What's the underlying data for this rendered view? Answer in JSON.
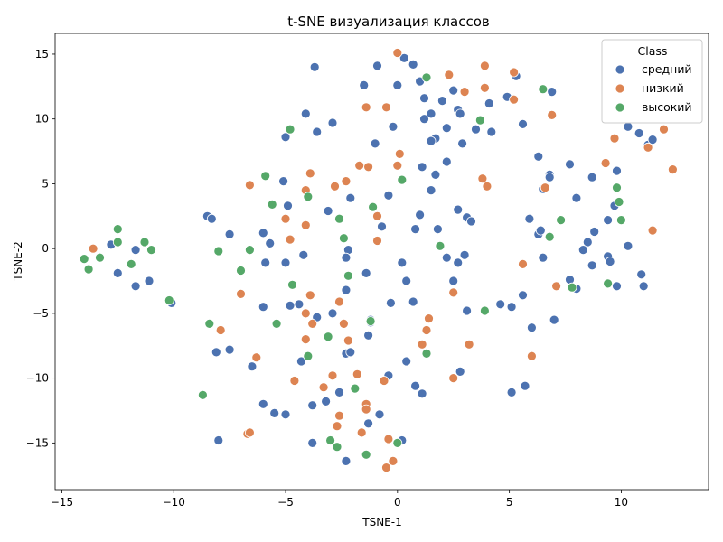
{
  "chart_data": {
    "type": "scatter",
    "title": "t-SNE визуализация классов",
    "xlabel": "TSNE-1",
    "ylabel": "TSNE-2",
    "xlim": [
      -15.3,
      13.9
    ],
    "ylim": [
      -18.6,
      16.6
    ],
    "xticks": [
      -15,
      -10,
      -5,
      0,
      5,
      10
    ],
    "yticks": [
      -15,
      -10,
      -5,
      0,
      5,
      10,
      15
    ],
    "xtick_labels": [
      "−15",
      "−10",
      "−5",
      "0",
      "5",
      "10"
    ],
    "ytick_labels": [
      "−15",
      "−10",
      "−5",
      "0",
      "5",
      "10",
      "15"
    ],
    "grid": false,
    "legend": {
      "title": "Class",
      "placement": "top-right"
    },
    "series": [
      {
        "name": "средний",
        "color": "#4c72b0",
        "points": [
          [
            -3.7,
            14.0
          ],
          [
            -0.9,
            14.1
          ],
          [
            0.3,
            14.7
          ],
          [
            0.7,
            14.2
          ],
          [
            -1.5,
            12.6
          ],
          [
            -0.0,
            12.6
          ],
          [
            1.0,
            12.9
          ],
          [
            2.5,
            12.2
          ],
          [
            5.3,
            13.3
          ],
          [
            -4.1,
            10.4
          ],
          [
            -2.9,
            9.7
          ],
          [
            -3.6,
            9.0
          ],
          [
            -5.0,
            8.6
          ],
          [
            -1.0,
            8.1
          ],
          [
            -0.2,
            9.4
          ],
          [
            1.2,
            10.0
          ],
          [
            1.5,
            10.4
          ],
          [
            2.0,
            11.4
          ],
          [
            2.7,
            10.7
          ],
          [
            2.8,
            10.4
          ],
          [
            2.2,
            9.3
          ],
          [
            1.7,
            8.5
          ],
          [
            1.5,
            8.3
          ],
          [
            2.9,
            8.1
          ],
          [
            3.5,
            9.2
          ],
          [
            4.1,
            11.2
          ],
          [
            4.9,
            11.7
          ],
          [
            4.2,
            9.0
          ],
          [
            5.6,
            9.6
          ],
          [
            6.9,
            12.1
          ],
          [
            1.2,
            11.6
          ],
          [
            -5.1,
            5.2
          ],
          [
            -4.9,
            3.3
          ],
          [
            -2.1,
            3.9
          ],
          [
            -0.4,
            4.1
          ],
          [
            -3.1,
            2.9
          ],
          [
            -0.7,
            1.7
          ],
          [
            -6.0,
            1.2
          ],
          [
            -5.7,
            0.4
          ],
          [
            -5.9,
            -1.1
          ],
          [
            -5.0,
            -1.1
          ],
          [
            -4.2,
            -0.5
          ],
          [
            -2.2,
            -0.1
          ],
          [
            -2.3,
            -0.7
          ],
          [
            -1.4,
            -1.9
          ],
          [
            0.2,
            -1.1
          ],
          [
            0.4,
            -2.5
          ],
          [
            0.8,
            1.5
          ],
          [
            1.0,
            2.6
          ],
          [
            1.1,
            6.3
          ],
          [
            1.7,
            5.7
          ],
          [
            1.5,
            4.5
          ],
          [
            2.2,
            6.7
          ],
          [
            2.7,
            3.0
          ],
          [
            3.1,
            2.4
          ],
          [
            3.3,
            2.1
          ],
          [
            1.8,
            1.5
          ],
          [
            2.2,
            -0.7
          ],
          [
            2.7,
            -1.1
          ],
          [
            3.0,
            -0.5
          ],
          [
            2.5,
            -2.5
          ],
          [
            5.9,
            2.3
          ],
          [
            6.3,
            1.1
          ],
          [
            6.4,
            1.4
          ],
          [
            6.3,
            7.1
          ],
          [
            6.8,
            5.7
          ],
          [
            6.8,
            5.5
          ],
          [
            6.5,
            4.6
          ],
          [
            6.5,
            -0.7
          ],
          [
            7.7,
            6.5
          ],
          [
            8.0,
            3.9
          ],
          [
            8.7,
            5.5
          ],
          [
            8.8,
            1.3
          ],
          [
            8.5,
            0.5
          ],
          [
            8.3,
            -0.1
          ],
          [
            8.7,
            -1.3
          ],
          [
            9.4,
            -0.6
          ],
          [
            9.5,
            -1.0
          ],
          [
            9.4,
            2.2
          ],
          [
            9.7,
            3.3
          ],
          [
            9.8,
            6.0
          ],
          [
            10.3,
            9.4
          ],
          [
            10.8,
            8.9
          ],
          [
            11.2,
            8.0
          ],
          [
            11.4,
            8.4
          ],
          [
            10.3,
            0.2
          ],
          [
            10.9,
            -2.0
          ],
          [
            11.0,
            -2.9
          ],
          [
            9.8,
            -2.9
          ],
          [
            7.7,
            -2.4
          ],
          [
            8.0,
            -3.1
          ],
          [
            -8.5,
            2.5
          ],
          [
            -8.3,
            2.3
          ],
          [
            -7.5,
            1.1
          ],
          [
            -11.7,
            -0.1
          ],
          [
            -12.8,
            0.3
          ],
          [
            -12.5,
            -1.9
          ],
          [
            -11.7,
            -2.9
          ],
          [
            -11.1,
            -2.5
          ],
          [
            -10.1,
            -4.2
          ],
          [
            -8.1,
            -8.0
          ],
          [
            -7.5,
            -7.8
          ],
          [
            -6.5,
            -9.1
          ],
          [
            -6.0,
            -4.5
          ],
          [
            -4.8,
            -4.4
          ],
          [
            -4.4,
            -4.3
          ],
          [
            -3.6,
            -5.3
          ],
          [
            -2.9,
            -5.0
          ],
          [
            -2.3,
            -3.2
          ],
          [
            -1.2,
            -5.5
          ],
          [
            -1.2,
            -5.7
          ],
          [
            -1.3,
            -6.7
          ],
          [
            -0.3,
            -4.2
          ],
          [
            0.7,
            -4.1
          ],
          [
            -4.3,
            -8.7
          ],
          [
            -2.3,
            -8.1
          ],
          [
            -2.1,
            -8.0
          ],
          [
            -2.6,
            -11.1
          ],
          [
            -3.8,
            -12.1
          ],
          [
            -3.2,
            -11.8
          ],
          [
            -6.0,
            -12.0
          ],
          [
            -5.5,
            -12.7
          ],
          [
            -5.0,
            -12.8
          ],
          [
            -8.0,
            -14.8
          ],
          [
            -3.8,
            -15.0
          ],
          [
            -2.3,
            -16.4
          ],
          [
            -1.3,
            -13.5
          ],
          [
            -0.8,
            -12.8
          ],
          [
            -0.4,
            -9.8
          ],
          [
            0.4,
            -8.7
          ],
          [
            0.8,
            -10.6
          ],
          [
            1.1,
            -11.2
          ],
          [
            0.2,
            -14.8
          ],
          [
            2.8,
            -9.5
          ],
          [
            3.1,
            -4.8
          ],
          [
            4.6,
            -4.3
          ],
          [
            5.1,
            -4.5
          ],
          [
            5.6,
            -3.6
          ],
          [
            5.1,
            -11.1
          ],
          [
            5.7,
            -10.6
          ],
          [
            6.0,
            -6.1
          ],
          [
            7.0,
            -5.5
          ]
        ]
      },
      {
        "name": "низкий",
        "color": "#dd8452",
        "points": [
          [
            0.0,
            15.1
          ],
          [
            2.3,
            13.4
          ],
          [
            3.9,
            14.1
          ],
          [
            5.2,
            13.6
          ],
          [
            3.0,
            12.1
          ],
          [
            3.9,
            12.4
          ],
          [
            5.2,
            11.5
          ],
          [
            6.9,
            10.3
          ],
          [
            -1.4,
            10.9
          ],
          [
            -0.5,
            10.9
          ],
          [
            -1.7,
            6.4
          ],
          [
            -1.3,
            6.3
          ],
          [
            -0.0,
            6.4
          ],
          [
            0.1,
            7.3
          ],
          [
            -3.9,
            5.8
          ],
          [
            -2.3,
            5.2
          ],
          [
            -2.8,
            4.8
          ],
          [
            -4.1,
            4.5
          ],
          [
            -6.6,
            4.9
          ],
          [
            -4.1,
            1.8
          ],
          [
            -5.0,
            2.3
          ],
          [
            -4.8,
            0.7
          ],
          [
            -0.9,
            2.5
          ],
          [
            -0.9,
            0.6
          ],
          [
            3.8,
            5.4
          ],
          [
            4.0,
            4.8
          ],
          [
            6.6,
            4.7
          ],
          [
            9.3,
            6.6
          ],
          [
            9.7,
            8.5
          ],
          [
            11.2,
            7.8
          ],
          [
            11.9,
            9.2
          ],
          [
            12.3,
            6.1
          ],
          [
            11.4,
            1.4
          ],
          [
            5.6,
            -1.2
          ],
          [
            7.1,
            -2.9
          ],
          [
            -13.6,
            0.0
          ],
          [
            -7.0,
            -3.5
          ],
          [
            -3.9,
            -3.6
          ],
          [
            -2.6,
            -4.1
          ],
          [
            -4.1,
            -5.0
          ],
          [
            -3.8,
            -5.8
          ],
          [
            -2.4,
            -5.8
          ],
          [
            -4.1,
            -7.0
          ],
          [
            -2.2,
            -7.1
          ],
          [
            -6.3,
            -8.4
          ],
          [
            -7.9,
            -6.3
          ],
          [
            -1.8,
            -9.7
          ],
          [
            -2.9,
            -9.8
          ],
          [
            -3.3,
            -10.7
          ],
          [
            -4.6,
            -10.2
          ],
          [
            -0.6,
            -10.2
          ],
          [
            1.4,
            -5.4
          ],
          [
            1.3,
            -6.3
          ],
          [
            1.1,
            -7.4
          ],
          [
            2.5,
            -3.4
          ],
          [
            3.2,
            -7.4
          ],
          [
            2.5,
            -10.0
          ],
          [
            6.0,
            -8.3
          ],
          [
            -2.6,
            -12.9
          ],
          [
            -2.7,
            -13.7
          ],
          [
            -1.4,
            -12.0
          ],
          [
            -1.4,
            -12.4
          ],
          [
            -1.6,
            -14.2
          ],
          [
            -6.7,
            -14.3
          ],
          [
            -6.6,
            -14.2
          ],
          [
            -0.4,
            -14.7
          ],
          [
            -0.2,
            -16.4
          ],
          [
            -0.5,
            -16.9
          ]
        ]
      },
      {
        "name": "высокий",
        "color": "#55a868",
        "points": [
          [
            1.3,
            13.2
          ],
          [
            6.5,
            12.3
          ],
          [
            3.7,
            9.9
          ],
          [
            -4.8,
            9.2
          ],
          [
            0.2,
            5.3
          ],
          [
            -5.9,
            5.6
          ],
          [
            -5.6,
            3.4
          ],
          [
            -4.0,
            4.0
          ],
          [
            -2.6,
            2.3
          ],
          [
            -1.1,
            3.2
          ],
          [
            -2.4,
            0.8
          ],
          [
            1.9,
            0.2
          ],
          [
            7.3,
            2.2
          ],
          [
            6.8,
            0.9
          ],
          [
            9.8,
            4.7
          ],
          [
            9.9,
            3.6
          ],
          [
            10.0,
            2.2
          ],
          [
            9.4,
            -2.7
          ],
          [
            7.8,
            -3.0
          ],
          [
            3.9,
            -4.8
          ],
          [
            -12.5,
            1.5
          ],
          [
            -11.3,
            0.5
          ],
          [
            -11.0,
            -0.1
          ],
          [
            -12.5,
            0.5
          ],
          [
            -11.9,
            -1.2
          ],
          [
            -14.0,
            -0.8
          ],
          [
            -13.3,
            -0.7
          ],
          [
            -13.8,
            -1.6
          ],
          [
            -8.0,
            -0.2
          ],
          [
            -6.6,
            -0.1
          ],
          [
            -7.0,
            -1.7
          ],
          [
            -10.2,
            -4.0
          ],
          [
            -4.7,
            -2.8
          ],
          [
            -2.2,
            -2.1
          ],
          [
            -8.4,
            -5.8
          ],
          [
            -5.4,
            -5.8
          ],
          [
            -3.1,
            -6.8
          ],
          [
            -4.0,
            -8.3
          ],
          [
            -1.9,
            -10.8
          ],
          [
            1.3,
            -8.1
          ],
          [
            -8.7,
            -11.3
          ],
          [
            -3.0,
            -14.8
          ],
          [
            -2.7,
            -15.3
          ],
          [
            -1.4,
            -15.9
          ],
          [
            0.0,
            -15.0
          ],
          [
            -1.2,
            -5.6
          ]
        ]
      }
    ]
  }
}
